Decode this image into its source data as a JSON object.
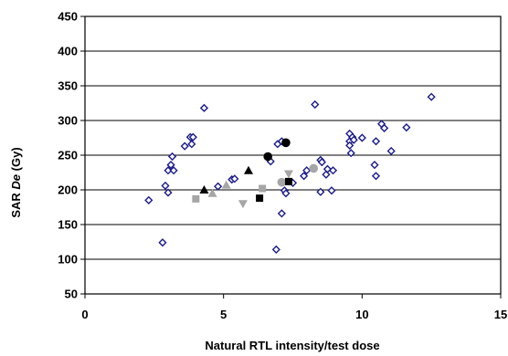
{
  "chart_data": {
    "type": "scatter",
    "title": "",
    "xlabel": "Natural RTL intensity/test dose",
    "ylabel_prefix": "SAR ",
    "ylabel_italic": "De",
    "ylabel_suffix": " (Gy)",
    "xlim": [
      0,
      15
    ],
    "ylim": [
      50,
      450
    ],
    "xticks": [
      0,
      5,
      10,
      15
    ],
    "yticks": [
      50,
      100,
      150,
      200,
      250,
      300,
      350,
      400,
      450
    ],
    "grid": "horizontal",
    "legend": "none",
    "series": [
      {
        "marker": "diamond-open",
        "color": "#1a1a8c",
        "points": [
          [
            2.3,
            185
          ],
          [
            2.8,
            124
          ],
          [
            2.9,
            206
          ],
          [
            3.0,
            196
          ],
          [
            3.0,
            228
          ],
          [
            3.1,
            236
          ],
          [
            3.15,
            248
          ],
          [
            3.2,
            228
          ],
          [
            3.6,
            263
          ],
          [
            3.8,
            276
          ],
          [
            3.85,
            266
          ],
          [
            3.9,
            276
          ],
          [
            4.3,
            318
          ],
          [
            4.8,
            205
          ],
          [
            5.3,
            215
          ],
          [
            5.4,
            216
          ],
          [
            6.7,
            241
          ],
          [
            6.9,
            114
          ],
          [
            6.95,
            266
          ],
          [
            7.1,
            270
          ],
          [
            7.1,
            166
          ],
          [
            7.2,
            199
          ],
          [
            7.25,
            195
          ],
          [
            7.5,
            210
          ],
          [
            7.9,
            220
          ],
          [
            8.0,
            228
          ],
          [
            8.3,
            323
          ],
          [
            8.5,
            243
          ],
          [
            8.5,
            197
          ],
          [
            8.55,
            240
          ],
          [
            8.7,
            222
          ],
          [
            8.75,
            230
          ],
          [
            8.9,
            199
          ],
          [
            8.95,
            228
          ],
          [
            9.55,
            281
          ],
          [
            9.55,
            270
          ],
          [
            9.55,
            264
          ],
          [
            9.6,
            253
          ],
          [
            9.65,
            276
          ],
          [
            9.7,
            272
          ],
          [
            10.0,
            275
          ],
          [
            10.45,
            236
          ],
          [
            10.5,
            270
          ],
          [
            10.5,
            220
          ],
          [
            10.7,
            295
          ],
          [
            10.8,
            289
          ],
          [
            11.05,
            256
          ],
          [
            11.6,
            290
          ],
          [
            12.5,
            334
          ]
        ]
      },
      {
        "marker": "circle-filled",
        "color": "#000000",
        "points": [
          [
            6.6,
            248
          ],
          [
            7.25,
            268
          ]
        ]
      },
      {
        "marker": "circle-filled",
        "color": "#a6a6a6",
        "points": [
          [
            7.1,
            211
          ],
          [
            8.25,
            231
          ]
        ]
      },
      {
        "marker": "triangle-up",
        "color": "#000000",
        "points": [
          [
            4.3,
            200
          ],
          [
            5.9,
            228
          ]
        ]
      },
      {
        "marker": "triangle-up",
        "color": "#a6a6a6",
        "points": [
          [
            4.6,
            195
          ],
          [
            5.1,
            207
          ]
        ]
      },
      {
        "marker": "triangle-down",
        "color": "#a6a6a6",
        "points": [
          [
            5.7,
            180
          ],
          [
            7.35,
            223
          ]
        ]
      },
      {
        "marker": "square",
        "color": "#000000",
        "points": [
          [
            6.3,
            188
          ],
          [
            7.35,
            212
          ]
        ]
      },
      {
        "marker": "square",
        "color": "#a6a6a6",
        "points": [
          [
            4.0,
            187
          ],
          [
            6.4,
            202
          ]
        ]
      }
    ]
  }
}
